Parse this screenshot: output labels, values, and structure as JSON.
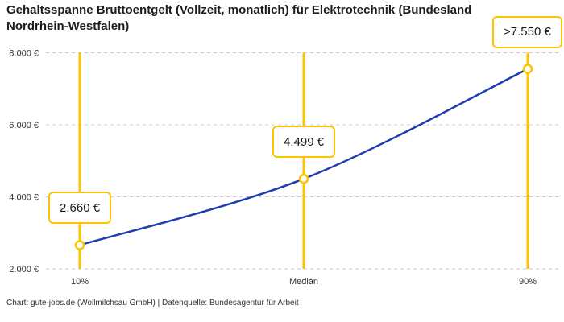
{
  "title_lines": [
    "Gehaltsspanne Bruttoentgelt (Vollzeit, monatlich) für Elektrotechnik (Bundesland",
    "Nordrhein-Westfalen)"
  ],
  "footer": "Chart: gute-jobs.de (Wollmilchsau GmbH) | Datenquelle: Bundesagentur für Arbeit",
  "chart_data": {
    "type": "line",
    "title": "Gehaltsspanne Bruttoentgelt (Vollzeit, monatlich) für Elektrotechnik (Bundesland Nordrhein-Westfalen)",
    "categories": [
      "10%",
      "Median",
      "90%"
    ],
    "values": [
      2660,
      4499,
      7550
    ],
    "point_labels": [
      "2.660 €",
      "4.499 €",
      ">7.550 €"
    ],
    "ylim": [
      2000,
      8000
    ],
    "yticks": [
      2000,
      4000,
      6000,
      8000
    ],
    "ytick_labels": [
      "2.000 €",
      "4.000 €",
      "6.000 €",
      "8.000 €"
    ],
    "xlabel": "",
    "ylabel": "",
    "grid": "horizontal-dashed",
    "legend": "none",
    "colors": {
      "line": "#203db0",
      "marker": "#fdc300",
      "grid": "#c8c8c8",
      "axis_text": "#333333",
      "box_bg": "#ffffff"
    }
  }
}
